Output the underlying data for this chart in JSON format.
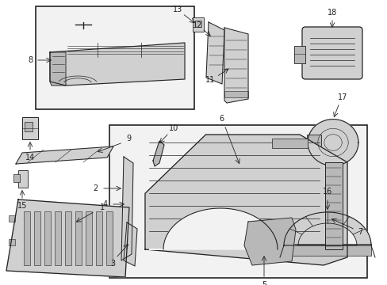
{
  "bg_color": "#ffffff",
  "lc": "#222222",
  "gray1": "#d0d0d0",
  "gray2": "#b8b8b8",
  "gray3": "#e8e8e8",
  "fig_w": 4.89,
  "fig_h": 3.6,
  "dpi": 100
}
